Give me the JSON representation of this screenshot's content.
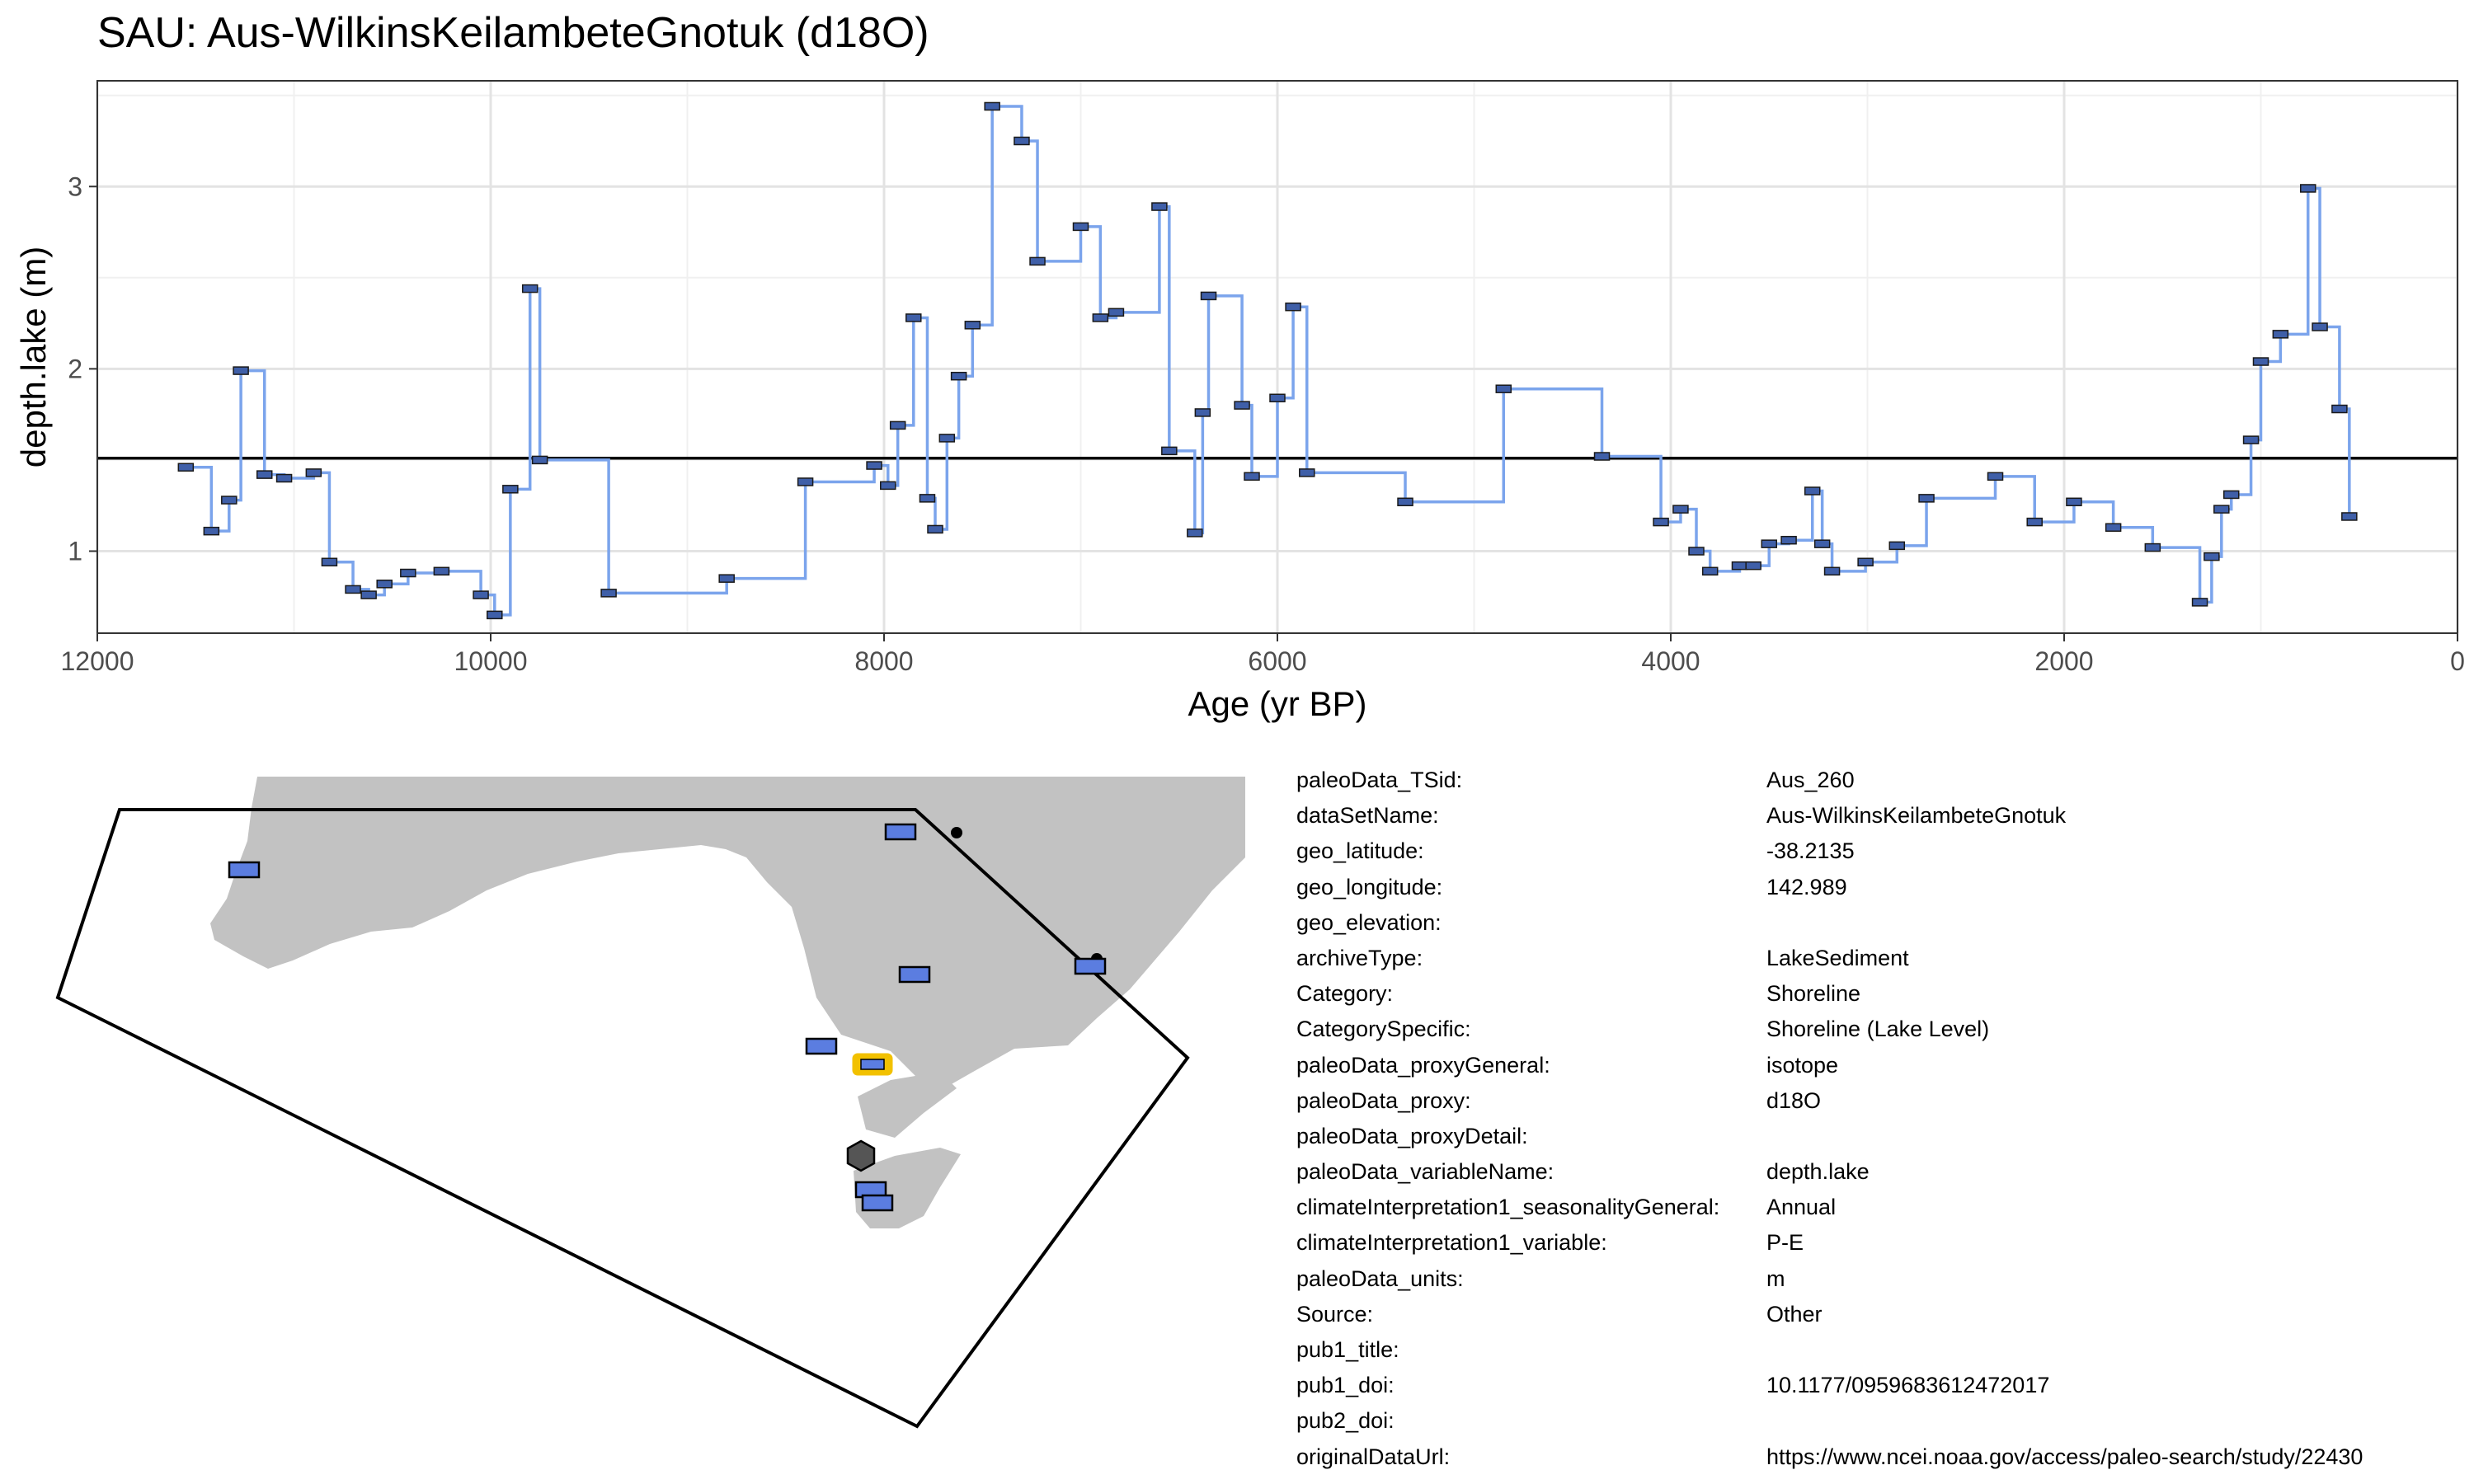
{
  "title": "SAU: Aus-WilkinsKeilambeteGnotuk (d18O)",
  "colors": {
    "line": "#7ba4ec",
    "marker_fill": "#3f5fa8",
    "reference_line": "#000000",
    "land": "#c2c2c2",
    "site": "#5b7de0",
    "selected_site": "#f2c100",
    "hexagon": "#555555"
  },
  "chart_data": {
    "type": "step-line",
    "xlabel": "Age (yr BP)",
    "ylabel": "depth.lake (m)",
    "xlim": [
      12000,
      0
    ],
    "ylim": [
      0.55,
      3.58
    ],
    "x_reversed": true,
    "grid": true,
    "x_ticks": [
      12000,
      10000,
      8000,
      6000,
      4000,
      2000,
      0
    ],
    "y_ticks": [
      1,
      2,
      3
    ],
    "reference_line_y": 1.51,
    "x": [
      11550,
      11420,
      11330,
      11270,
      11150,
      11050,
      10900,
      10820,
      10700,
      10620,
      10540,
      10420,
      10250,
      10050,
      9980,
      9900,
      9800,
      9750,
      9400,
      8800,
      8400,
      8050,
      7980,
      7930,
      7850,
      7780,
      7740,
      7680,
      7620,
      7550,
      7450,
      7300,
      7220,
      7000,
      6900,
      6820,
      6600,
      6550,
      6420,
      6380,
      6350,
      6180,
      6130,
      6000,
      5920,
      5850,
      5350,
      4850,
      4350,
      4050,
      3950,
      3870,
      3800,
      3650,
      3580,
      3500,
      3400,
      3280,
      3230,
      3180,
      3010,
      2850,
      2700,
      2350,
      2150,
      1950,
      1750,
      1550,
      1310,
      1250,
      1200,
      1150,
      1050,
      1000,
      900,
      760,
      700,
      600,
      550
    ],
    "y": [
      1.46,
      1.11,
      1.28,
      1.99,
      1.42,
      1.4,
      1.43,
      0.94,
      0.79,
      0.76,
      0.82,
      0.88,
      0.89,
      0.76,
      0.65,
      1.34,
      2.44,
      1.5,
      0.77,
      0.85,
      1.38,
      1.47,
      1.36,
      1.69,
      2.28,
      1.29,
      1.12,
      1.62,
      1.96,
      2.24,
      3.44,
      3.25,
      2.59,
      2.78,
      2.28,
      2.31,
      2.89,
      1.55,
      1.1,
      1.76,
      2.4,
      1.8,
      1.41,
      1.84,
      2.34,
      1.43,
      1.27,
      1.89,
      1.52,
      1.16,
      1.23,
      1.0,
      0.89,
      0.92,
      0.92,
      1.04,
      1.06,
      1.33,
      1.04,
      0.89,
      0.94,
      1.03,
      1.29,
      1.41,
      1.16,
      1.27,
      1.13,
      1.02,
      0.72,
      0.97,
      1.23,
      1.31,
      1.61,
      2.04,
      2.19,
      2.99,
      2.23,
      1.78,
      1.19
    ]
  },
  "metadata": [
    {
      "key": "paleoData_TSid:",
      "value": "Aus_260"
    },
    {
      "key": "dataSetName:",
      "value": "Aus-WilkinsKeilambeteGnotuk"
    },
    {
      "key": "geo_latitude:",
      "value": "-38.2135"
    },
    {
      "key": "geo_longitude:",
      "value": "142.989"
    },
    {
      "key": "geo_elevation:",
      "value": ""
    },
    {
      "key": "archiveType:",
      "value": "LakeSediment"
    },
    {
      "key": "Category:",
      "value": "Shoreline"
    },
    {
      "key": "CategorySpecific:",
      "value": "Shoreline (Lake Level)"
    },
    {
      "key": "paleoData_proxyGeneral:",
      "value": "isotope"
    },
    {
      "key": "paleoData_proxy:",
      "value": "d18O"
    },
    {
      "key": "paleoData_proxyDetail:",
      "value": ""
    },
    {
      "key": "paleoData_variableName:",
      "value": "depth.lake"
    },
    {
      "key": "climateInterpretation1_seasonalityGeneral:",
      "value": "Annual"
    },
    {
      "key": "climateInterpretation1_variable:",
      "value": "P-E"
    },
    {
      "key": "paleoData_units:",
      "value": "m"
    },
    {
      "key": "Source:",
      "value": "Other"
    },
    {
      "key": "pub1_title:",
      "value": ""
    },
    {
      "key": "pub1_doi:",
      "value": "10.1177/0959683612472017"
    },
    {
      "key": "pub2_doi:",
      "value": ""
    },
    {
      "key": "originalDataUrl:",
      "value": "https://www.ncei.noaa.gov/access/paleo-search/study/22430"
    }
  ]
}
